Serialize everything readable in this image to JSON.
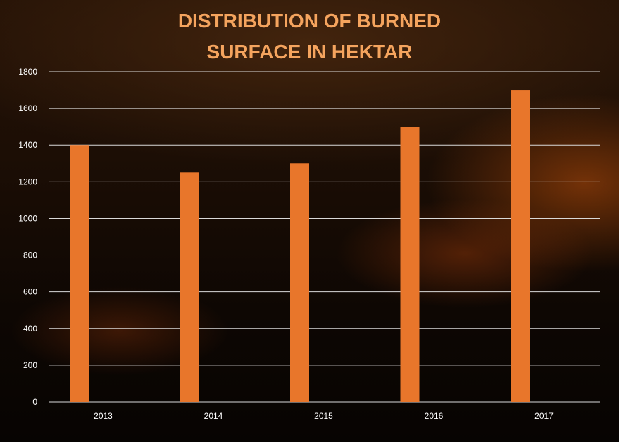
{
  "chart_data": {
    "type": "bar",
    "title_lines": [
      "DISTRIBUTION OF BURNED",
      "SURFACE IN HEKTAR"
    ],
    "categories": [
      "2013",
      "2014",
      "2015",
      "2016",
      "2017"
    ],
    "values": [
      1400,
      1250,
      1300,
      1500,
      1700
    ],
    "ylim": [
      0,
      1800
    ],
    "yticks": [
      "0",
      "200",
      "400",
      "600",
      "800",
      "1000",
      "1200",
      "1400",
      "1600",
      "1800"
    ],
    "xlabel": "",
    "ylabel": "",
    "grid": true,
    "legend": "none",
    "bar_color": "#e8762b",
    "title_color": "#f5a45e",
    "text_color": "#ffffff",
    "grid_color": "#d9d9d9"
  }
}
